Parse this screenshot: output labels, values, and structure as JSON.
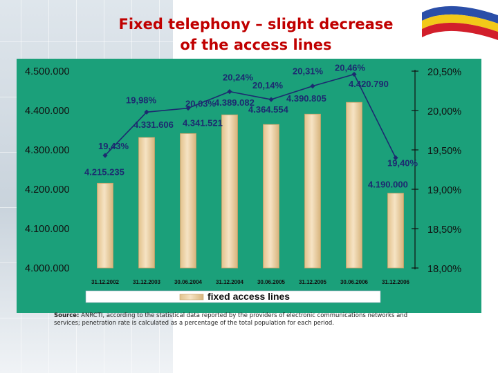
{
  "title_line1": "Fixed telephony – slight decrease",
  "title_line2": "of the access lines",
  "source_label": "Source:",
  "source_text": "ANRCTI, according to the statistical data reported by the providers of electronic communications networks and services; penetration rate is calculated as a percentage of the total population for each period.",
  "chart_data": {
    "type": "bar",
    "categories": [
      "31.12.2002",
      "31.12.2003",
      "30.06.2004",
      "31.12.2004",
      "30.06.2005",
      "31.12.2005",
      "30.06.2006",
      "31.12.2006"
    ],
    "series": [
      {
        "name": "fixed access lines",
        "type": "bar",
        "axis": "left",
        "values": [
          4215235,
          4331606,
          4341521,
          4389082,
          4364554,
          4390805,
          4420790,
          4190000
        ],
        "labels": [
          "4.215.235",
          "4.331.606",
          "4.341.521",
          "4.389.082",
          "4.364.554",
          "4.390.805",
          "4.420.790",
          "4.190.000"
        ]
      },
      {
        "type": "line",
        "axis": "right",
        "values": [
          19.43,
          19.98,
          20.03,
          20.24,
          20.14,
          20.31,
          20.46,
          19.4
        ],
        "labels": [
          "19,43%",
          "19,98%",
          "20,03%",
          "20,24%",
          "20,14%",
          "20,31%",
          "20,46%",
          "19,40%"
        ]
      }
    ],
    "y_left": {
      "min": 4000000,
      "max": 4500000,
      "ticks": [
        4000000,
        4100000,
        4200000,
        4300000,
        4400000,
        4500000
      ],
      "tick_labels": [
        "4.000.000",
        "4.100.000",
        "4.200.000",
        "4.300.000",
        "4.400.000",
        "4.500.000"
      ]
    },
    "y_right": {
      "min": 18.0,
      "max": 20.5,
      "ticks": [
        18.0,
        18.5,
        19.0,
        19.5,
        20.0,
        20.5
      ],
      "tick_labels": [
        "18,00%",
        "18,50%",
        "19,00%",
        "19,50%",
        "20,00%",
        "20,50%"
      ]
    },
    "legend_position": "bottom",
    "grid": false,
    "colors": {
      "background": "#1ba07a",
      "bar_fill": "#f6e3c4",
      "bar_edge": "#c9a26a",
      "line": "#1c2a70",
      "labels": "#1c2a70"
    }
  }
}
